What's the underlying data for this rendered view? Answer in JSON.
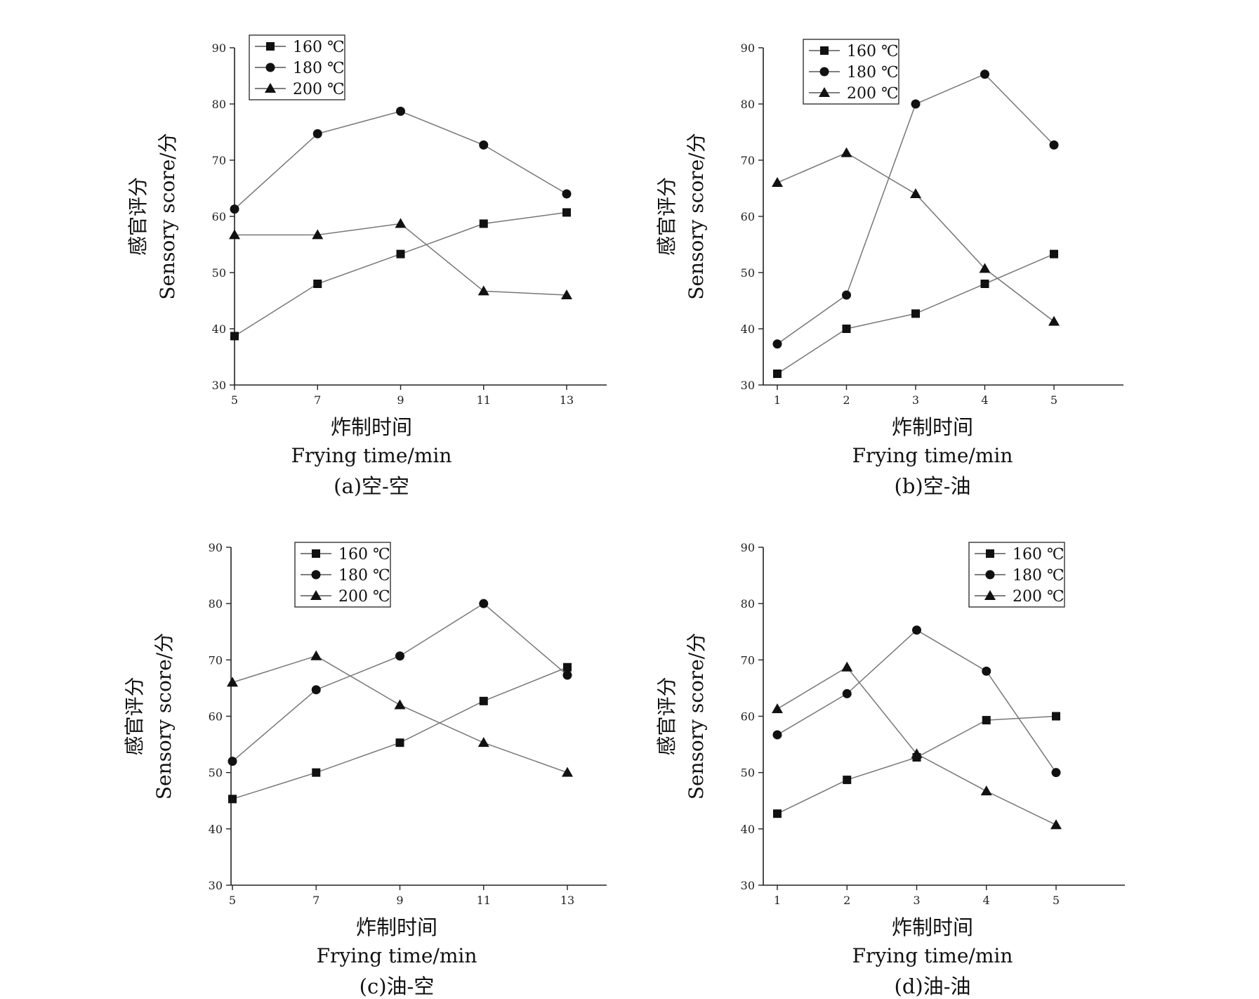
{
  "chart_data": [
    {
      "type": "line",
      "caption": "(a)空-空",
      "ylabel": [
        "感官评分",
        "Sensory score/分"
      ],
      "xlabel": [
        "炸制时间",
        "Frying time/min"
      ],
      "ylim": [
        30,
        90
      ],
      "yticks": [
        30,
        40,
        50,
        60,
        70,
        80,
        90
      ],
      "x": [
        5,
        7,
        9,
        11,
        13
      ],
      "legend_position": "top-left",
      "series": [
        {
          "name": "160 ℃",
          "marker": "square",
          "values": [
            38.7,
            48.0,
            53.3,
            58.7,
            60.7
          ]
        },
        {
          "name": "180 ℃",
          "marker": "circle",
          "values": [
            61.3,
            74.7,
            78.7,
            72.7,
            64.0
          ]
        },
        {
          "name": "200 ℃",
          "marker": "triangle",
          "values": [
            56.7,
            56.7,
            58.7,
            46.7,
            46.0
          ]
        }
      ]
    },
    {
      "type": "line",
      "caption": "(b)空-油",
      "ylabel": [
        "感官评分",
        "Sensory score/分"
      ],
      "xlabel": [
        "炸制时间",
        "Frying time/min"
      ],
      "ylim": [
        30,
        90
      ],
      "yticks": [
        30,
        40,
        50,
        60,
        70,
        80,
        90
      ],
      "x": [
        1,
        2,
        3,
        4,
        5
      ],
      "legend_position": "top-left",
      "series": [
        {
          "name": "160 ℃",
          "marker": "square",
          "values": [
            32.0,
            40.0,
            42.7,
            48.0,
            53.3
          ]
        },
        {
          "name": "180 ℃",
          "marker": "circle",
          "values": [
            37.3,
            46.0,
            80.0,
            85.3,
            72.7
          ]
        },
        {
          "name": "200 ℃",
          "marker": "triangle",
          "values": [
            66.0,
            71.3,
            64.0,
            50.7,
            41.3
          ]
        }
      ]
    },
    {
      "type": "line",
      "caption": "(c)油-空",
      "ylabel": [
        "感官评分",
        "Sensory score/分"
      ],
      "xlabel": [
        "炸制时间",
        "Frying time/min"
      ],
      "ylim": [
        30,
        90
      ],
      "yticks": [
        30,
        40,
        50,
        60,
        70,
        80,
        90
      ],
      "x": [
        5,
        7,
        9,
        11,
        13
      ],
      "legend_position": "top-center",
      "series": [
        {
          "name": "160 ℃",
          "marker": "square",
          "values": [
            45.3,
            50.0,
            55.3,
            62.7,
            68.7
          ]
        },
        {
          "name": "180 ℃",
          "marker": "circle",
          "values": [
            52.0,
            64.7,
            70.7,
            80.0,
            67.3
          ]
        },
        {
          "name": "200 ℃",
          "marker": "triangle",
          "values": [
            66.0,
            70.7,
            62.0,
            55.3,
            50.0
          ]
        }
      ]
    },
    {
      "type": "line",
      "caption": "(d)油-油",
      "ylabel": [
        "感官评分",
        "Sensory score/分"
      ],
      "xlabel": [
        "炸制时间",
        "Frying time/min"
      ],
      "ylim": [
        30,
        90
      ],
      "yticks": [
        30,
        40,
        50,
        60,
        70,
        80,
        90
      ],
      "x": [
        1,
        2,
        3,
        4,
        5
      ],
      "legend_position": "top-right",
      "series": [
        {
          "name": "160 ℃",
          "marker": "square",
          "values": [
            42.7,
            48.7,
            52.7,
            59.3,
            60.0
          ]
        },
        {
          "name": "180 ℃",
          "marker": "circle",
          "values": [
            56.7,
            64.0,
            75.3,
            68.0,
            50.0
          ]
        },
        {
          "name": "200 ℃",
          "marker": "triangle",
          "values": [
            61.3,
            68.7,
            53.3,
            46.7,
            40.7
          ]
        }
      ]
    }
  ]
}
